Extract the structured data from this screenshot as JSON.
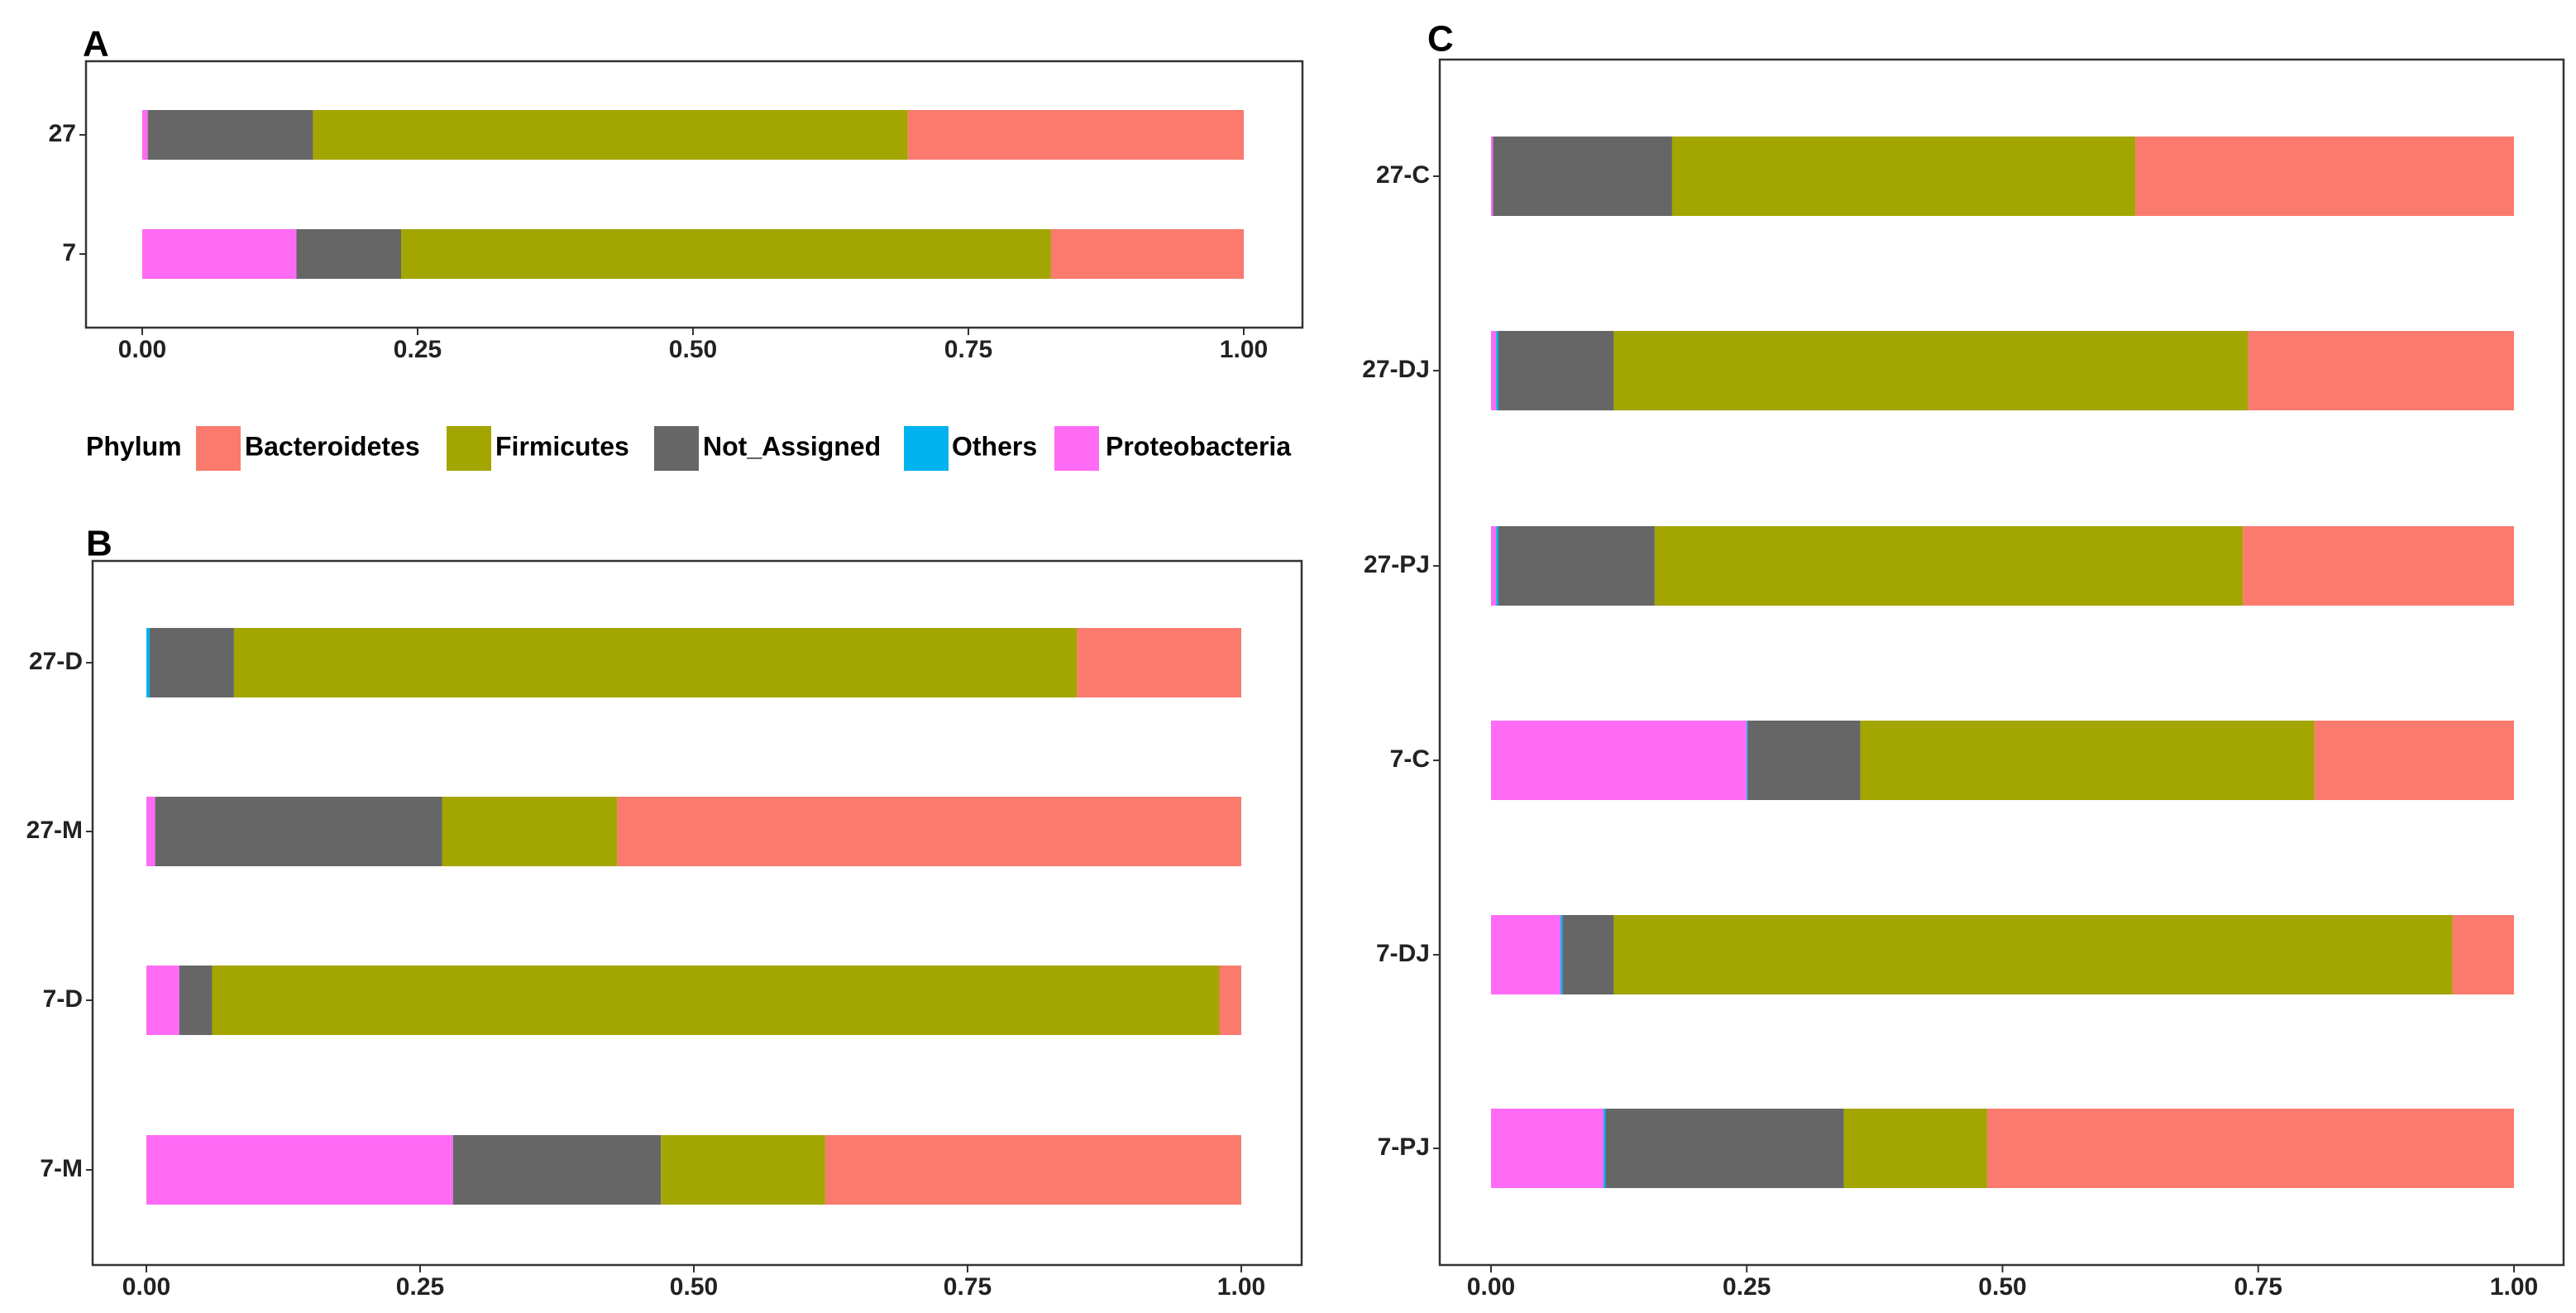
{
  "colors": {
    "Bacteroidetes": "#FA7A6E",
    "Firmicutes": "#A3A500",
    "Not_Assigned": "#666666",
    "Others": "#00B2EE",
    "Proteobacteria": "#FF6BF5"
  },
  "legend": {
    "title": "Phylum",
    "items": [
      "Bacteroidetes",
      "Firmicutes",
      "Not_Assigned",
      "Others",
      "Proteobacteria"
    ]
  },
  "chart_data": [
    {
      "panel": "A",
      "type": "bar",
      "orientation": "horizontal",
      "stacked": true,
      "xlim": [
        0,
        1
      ],
      "xticks": [
        "0.00",
        "0.25",
        "0.50",
        "0.75",
        "1.00"
      ],
      "categories": [
        "27",
        "7"
      ],
      "series": [
        {
          "name": "Proteobacteria",
          "values": [
            0.005,
            0.14
          ]
        },
        {
          "name": "Others",
          "values": [
            0.0,
            0.0
          ]
        },
        {
          "name": "Not_Assigned",
          "values": [
            0.15,
            0.095
          ]
        },
        {
          "name": "Firmicutes",
          "values": [
            0.54,
            0.59
          ]
        },
        {
          "name": "Bacteroidetes",
          "values": [
            0.305,
            0.175
          ]
        }
      ]
    },
    {
      "panel": "B",
      "type": "bar",
      "orientation": "horizontal",
      "stacked": true,
      "xlim": [
        0,
        1
      ],
      "xticks": [
        "0.00",
        "0.25",
        "0.50",
        "0.75",
        "1.00"
      ],
      "categories": [
        "27-D",
        "27-M",
        "7-D",
        "7-M"
      ],
      "series": [
        {
          "name": "Proteobacteria",
          "values": [
            0.0,
            0.008,
            0.03,
            0.28
          ]
        },
        {
          "name": "Others",
          "values": [
            0.003,
            0.0,
            0.0,
            0.0
          ]
        },
        {
          "name": "Not_Assigned",
          "values": [
            0.077,
            0.262,
            0.03,
            0.19
          ]
        },
        {
          "name": "Firmicutes",
          "values": [
            0.77,
            0.16,
            0.92,
            0.15
          ]
        },
        {
          "name": "Bacteroidetes",
          "values": [
            0.15,
            0.57,
            0.02,
            0.38
          ]
        }
      ]
    },
    {
      "panel": "C",
      "type": "bar",
      "orientation": "horizontal",
      "stacked": true,
      "xlim": [
        0,
        1
      ],
      "xticks": [
        "0.00",
        "0.25",
        "0.50",
        "0.75",
        "1.00"
      ],
      "categories": [
        "27-C",
        "27-DJ",
        "27-PJ",
        "7-C",
        "7-DJ",
        "7-PJ"
      ],
      "series": [
        {
          "name": "Proteobacteria",
          "values": [
            0.002,
            0.005,
            0.005,
            0.25,
            0.068,
            0.11
          ]
        },
        {
          "name": "Others",
          "values": [
            0.0,
            0.002,
            0.002,
            0.001,
            0.002,
            0.002
          ]
        },
        {
          "name": "Not_Assigned",
          "values": [
            0.175,
            0.113,
            0.153,
            0.11,
            0.05,
            0.233
          ]
        },
        {
          "name": "Firmicutes",
          "values": [
            0.453,
            0.62,
            0.575,
            0.444,
            0.82,
            0.14
          ]
        },
        {
          "name": "Bacteroidetes",
          "values": [
            0.37,
            0.26,
            0.265,
            0.195,
            0.06,
            0.515
          ]
        }
      ]
    }
  ]
}
